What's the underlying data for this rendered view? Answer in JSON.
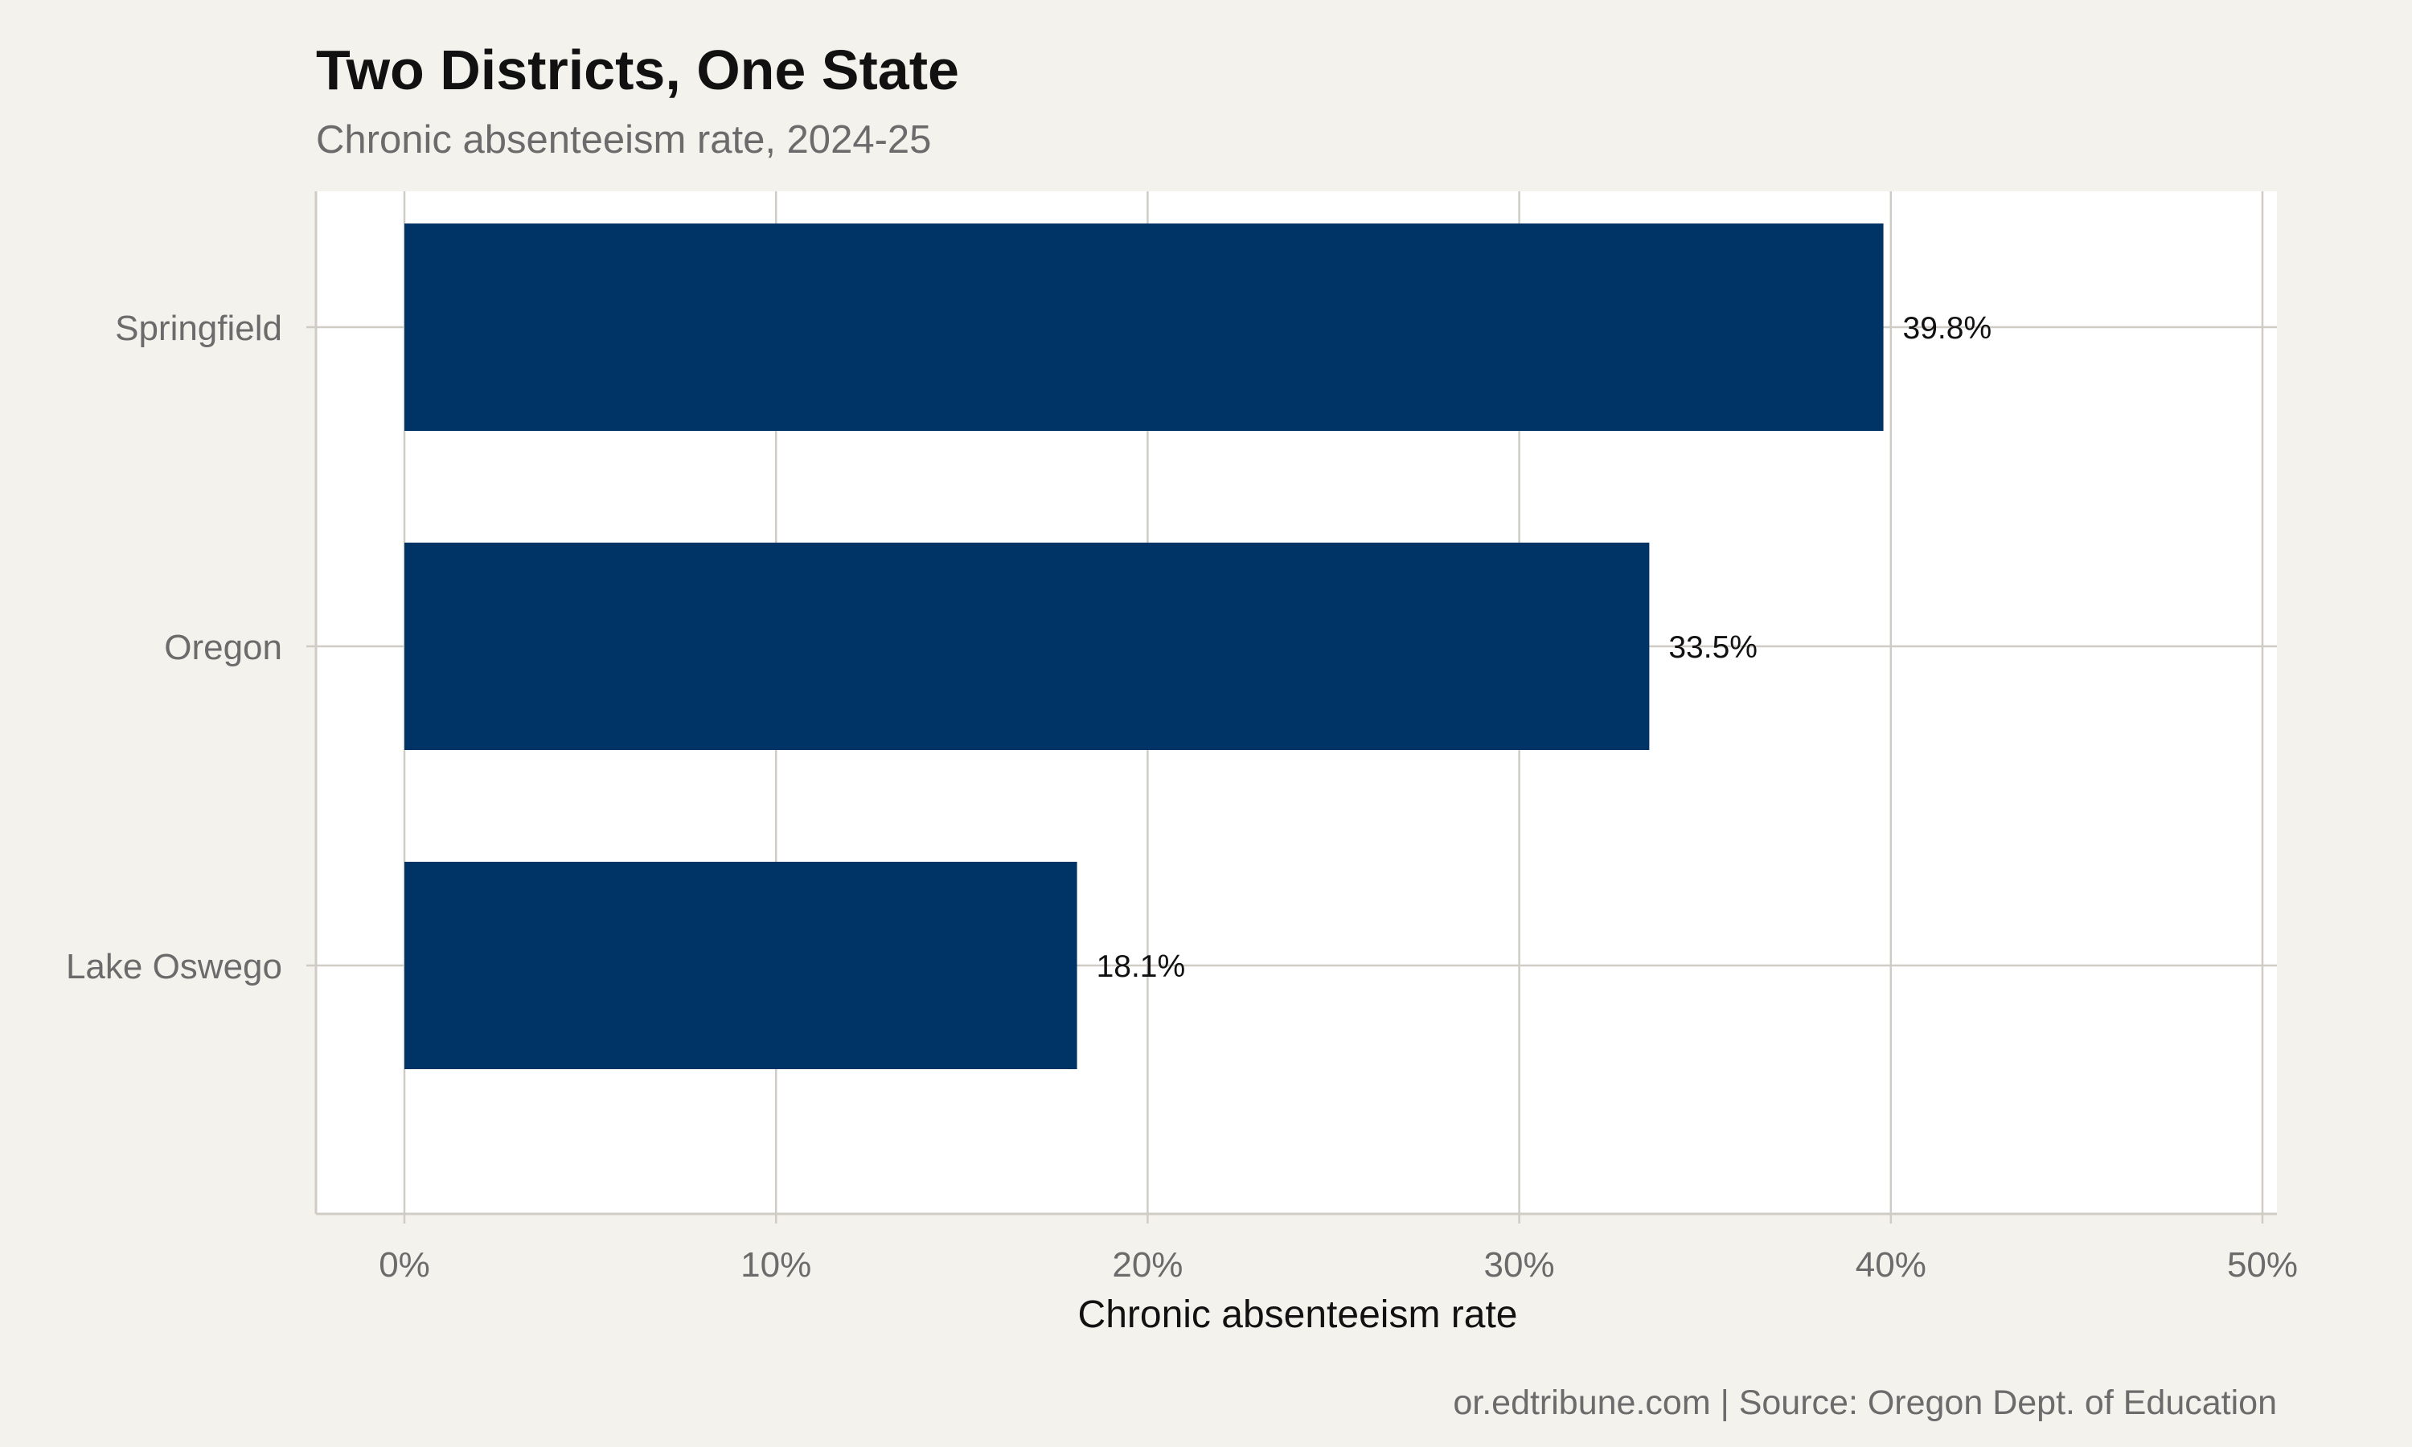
{
  "chart_data": {
    "type": "bar",
    "orientation": "horizontal",
    "title": "Two Districts, One State",
    "subtitle": "Chronic absenteeism rate, 2024-25",
    "categories": [
      "Springfield",
      "Oregon",
      "Lake Oswego"
    ],
    "values": [
      39.8,
      33.5,
      18.1
    ],
    "data_labels": [
      "39.8%",
      "33.5%",
      "18.1%"
    ],
    "xlabel": "Chronic absenteeism rate",
    "ylabel": "",
    "xlim": [
      0,
      50
    ],
    "x_ticks": [
      0,
      10,
      20,
      30,
      40,
      50
    ],
    "x_tick_labels": [
      "0%",
      "10%",
      "20%",
      "30%",
      "40%",
      "50%"
    ],
    "grid": true,
    "legend": "none",
    "caption": "or.edtribune.com | Source: Oregon Dept. of Education",
    "colors": {
      "bar": "#003366",
      "background": "#f4f2ed",
      "panel": "#ffffff",
      "grid": "#cfccc6"
    }
  }
}
